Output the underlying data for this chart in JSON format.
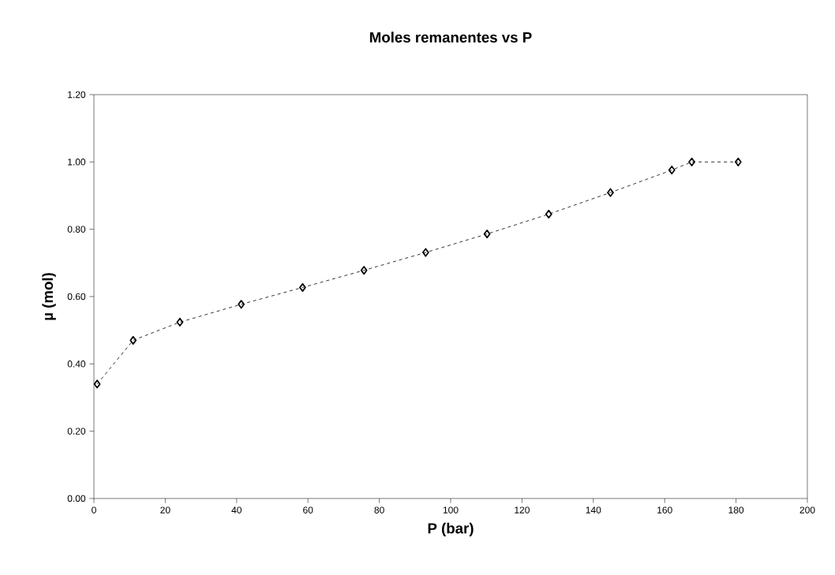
{
  "chart_data": {
    "type": "line",
    "title": "Moles remanentes vs P",
    "xlabel": "P (bar)",
    "ylabel": "µ (mol)",
    "x": [
      0.9,
      11.0,
      24.1,
      41.3,
      58.5,
      75.7,
      93.0,
      110.2,
      127.5,
      144.8,
      162.0,
      167.6,
      180.6
    ],
    "series": [
      {
        "color": "#000000",
        "values": [
          0.34,
          0.47,
          0.524,
          0.577,
          0.627,
          0.678,
          0.731,
          0.786,
          0.845,
          0.909,
          0.976,
          1.0,
          1.0
        ]
      }
    ],
    "xlim": [
      0,
      200
    ],
    "xticks": [
      0,
      20,
      40,
      60,
      80,
      100,
      120,
      140,
      160,
      180,
      200
    ],
    "ylim": [
      0,
      1.2
    ],
    "yticks": [
      {
        "value": 0,
        "label": "0.00"
      },
      {
        "value": 0.2,
        "label": "0.20"
      },
      {
        "value": 0.4,
        "label": "0.40"
      },
      {
        "value": 0.6,
        "label": "0.60"
      },
      {
        "value": 0.8,
        "label": "0.80"
      },
      {
        "value": 1.0,
        "label": "1.00"
      },
      {
        "value": 1.2,
        "label": "1.20"
      }
    ],
    "marker": "diamond",
    "line_style": "dashed",
    "grid": false
  }
}
